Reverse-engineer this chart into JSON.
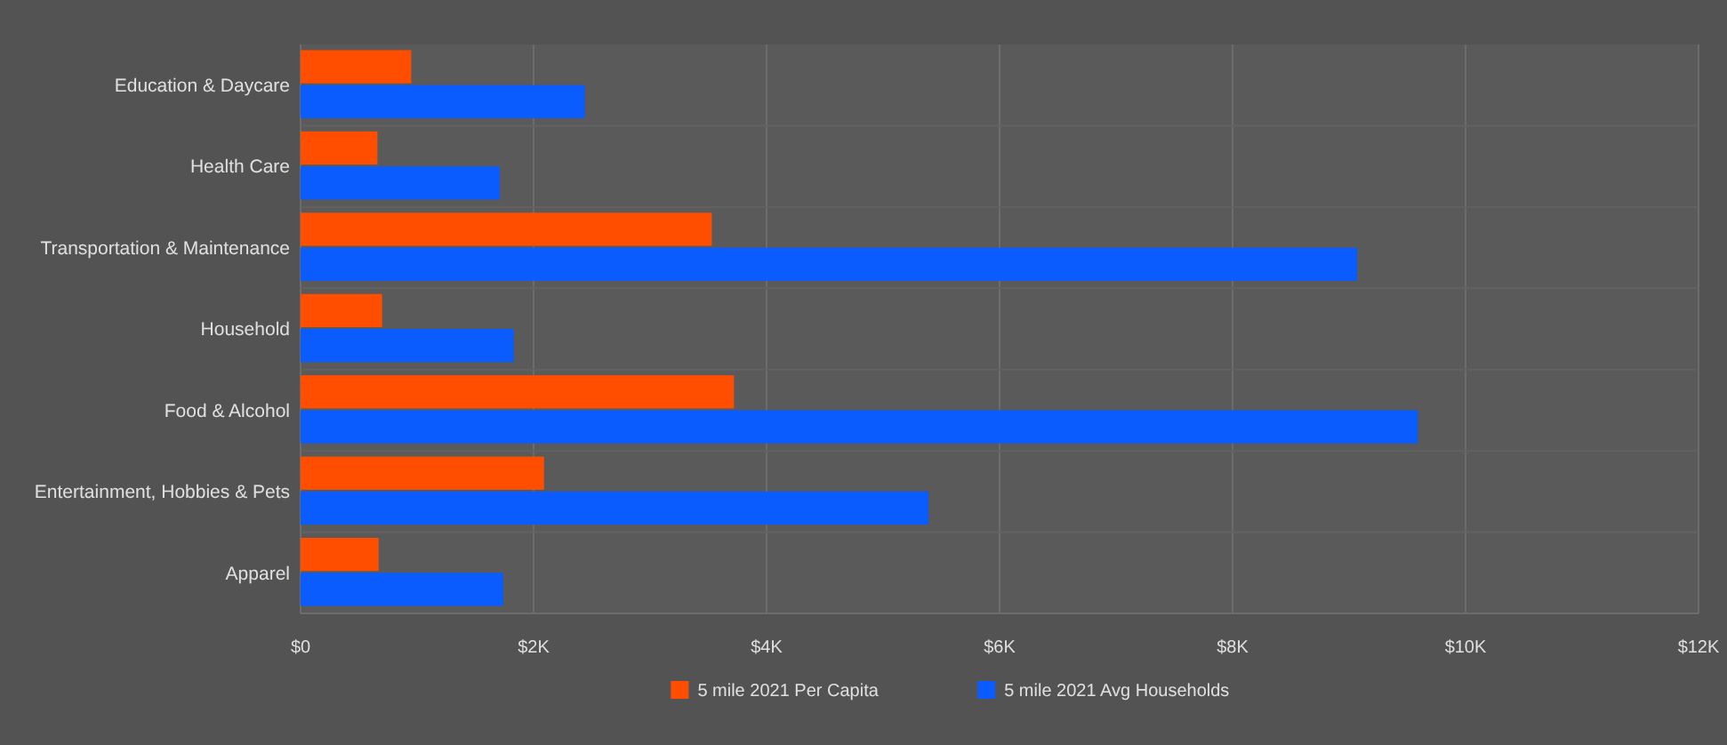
{
  "chart_data": {
    "type": "bar",
    "orientation": "horizontal",
    "categories": [
      "Education & Daycare",
      "Health Care",
      "Transportation & Maintenance",
      "Household",
      "Food & Alcohol",
      "Entertainment, Hobbies & Pets",
      "Apparel"
    ],
    "series": [
      {
        "name": "5 mile 2021 Per Capita",
        "color": "#ff4e00",
        "values": [
          0.95,
          0.66,
          3.53,
          0.7,
          3.72,
          2.09,
          0.67
        ]
      },
      {
        "name": "5 mile 2021 Avg Households",
        "color": "#0a5cff",
        "values": [
          2.44,
          1.71,
          9.07,
          1.83,
          9.59,
          5.39,
          1.74
        ]
      }
    ],
    "xlim": [
      0,
      12
    ],
    "xticks": [
      {
        "value": 0,
        "label": "$0"
      },
      {
        "value": 2,
        "label": "$2K"
      },
      {
        "value": 4,
        "label": "$4K"
      },
      {
        "value": 6,
        "label": "$6K"
      },
      {
        "value": 8,
        "label": "$8K"
      },
      {
        "value": 10,
        "label": "$10K"
      },
      {
        "value": 12,
        "label": "$12K"
      }
    ],
    "grid": "x",
    "legend": "bottom"
  }
}
